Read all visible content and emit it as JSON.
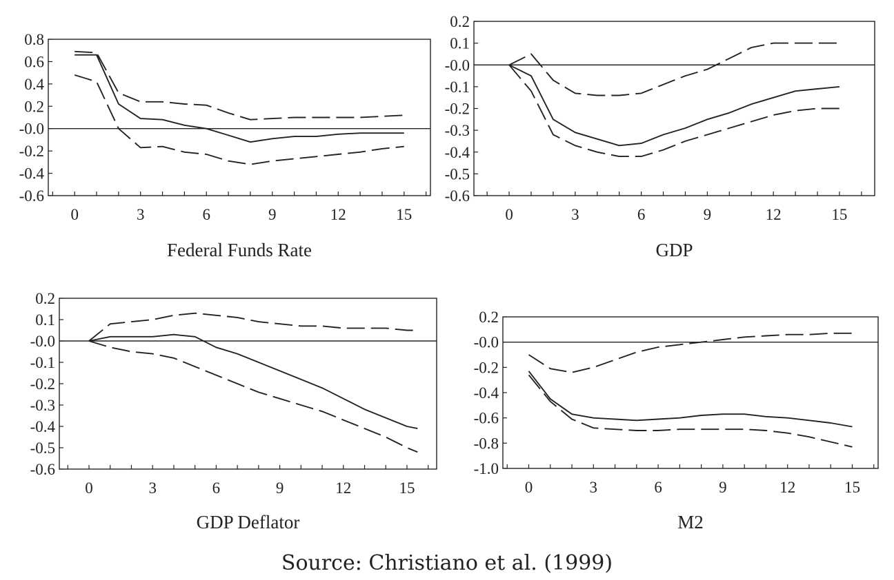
{
  "source": "Source: Christiano et al. (1999)",
  "chart_data": [
    {
      "type": "line",
      "title": "Federal Funds Rate",
      "xlim": [
        -1.2,
        16.2
      ],
      "ylim": [
        -0.6,
        0.8
      ],
      "xticks": [
        0,
        3,
        6,
        9,
        12,
        15
      ],
      "xtick_labels": [
        "0",
        "3",
        "6",
        "9",
        "12",
        "15"
      ],
      "yticks": [
        0.8,
        0.6,
        0.4,
        0.2,
        0.0,
        -0.2,
        -0.4,
        -0.6
      ],
      "ytick_labels": [
        "0.8",
        "0.6",
        "0.4",
        "0.2",
        "-0.0",
        "-0.2",
        "-0.4",
        "-0.6"
      ],
      "zero_line": true,
      "series": [
        {
          "style": "solid",
          "x": [
            0,
            1,
            2,
            3,
            4,
            5,
            6,
            7,
            8,
            9,
            10,
            11,
            12,
            13,
            14,
            15
          ],
          "values": [
            0.66,
            0.66,
            0.22,
            0.09,
            0.08,
            0.03,
            0.0,
            -0.06,
            -0.12,
            -0.09,
            -0.07,
            -0.07,
            -0.05,
            -0.04,
            -0.04,
            -0.04
          ]
        },
        {
          "style": "dashed",
          "x": [
            0,
            1,
            2,
            3,
            4,
            5,
            6,
            7,
            8,
            9,
            10,
            11,
            12,
            13,
            14,
            15
          ],
          "values": [
            0.69,
            0.68,
            0.32,
            0.24,
            0.24,
            0.22,
            0.21,
            0.14,
            0.08,
            0.09,
            0.1,
            0.1,
            0.1,
            0.1,
            0.11,
            0.12
          ]
        },
        {
          "style": "dashed",
          "x": [
            0,
            1,
            2,
            3,
            4,
            5,
            6,
            7,
            8,
            9,
            10,
            11,
            12,
            13,
            14,
            15
          ],
          "values": [
            0.48,
            0.42,
            0.0,
            -0.17,
            -0.16,
            -0.21,
            -0.23,
            -0.29,
            -0.32,
            -0.29,
            -0.27,
            -0.25,
            -0.23,
            -0.21,
            -0.18,
            -0.16
          ]
        }
      ]
    },
    {
      "type": "line",
      "title": "GDP",
      "xlim": [
        -1.6,
        16.6
      ],
      "ylim": [
        -0.6,
        0.2
      ],
      "xticks": [
        0,
        3,
        6,
        9,
        12,
        15
      ],
      "xtick_labels": [
        "0",
        "3",
        "6",
        "9",
        "12",
        "15"
      ],
      "yticks": [
        0.2,
        0.1,
        0.0,
        -0.1,
        -0.2,
        -0.3,
        -0.4,
        -0.5,
        -0.6
      ],
      "ytick_labels": [
        "0.2",
        "0.1",
        "-0.0",
        "-0.1",
        "-0.2",
        "-0.3",
        "-0.4",
        "-0.5",
        "-0.6"
      ],
      "zero_line": true,
      "series": [
        {
          "style": "solid",
          "x": [
            0,
            1,
            2,
            3,
            4,
            5,
            6,
            7,
            8,
            9,
            10,
            11,
            12,
            13,
            14,
            15
          ],
          "values": [
            0.0,
            -0.05,
            -0.25,
            -0.31,
            -0.34,
            -0.37,
            -0.36,
            -0.32,
            -0.29,
            -0.25,
            -0.22,
            -0.18,
            -0.15,
            -0.12,
            -0.11,
            -0.1
          ]
        },
        {
          "style": "dashed",
          "x": [
            0,
            1,
            2,
            3,
            4,
            5,
            6,
            7,
            8,
            9,
            10,
            11,
            12,
            13,
            14,
            15
          ],
          "values": [
            0.0,
            0.05,
            -0.07,
            -0.13,
            -0.14,
            -0.14,
            -0.13,
            -0.09,
            -0.05,
            -0.02,
            0.03,
            0.08,
            0.1,
            0.1,
            0.1,
            0.1
          ]
        },
        {
          "style": "dashed",
          "x": [
            0,
            1,
            2,
            3,
            4,
            5,
            6,
            7,
            8,
            9,
            10,
            11,
            12,
            13,
            14,
            15
          ],
          "values": [
            0.0,
            -0.12,
            -0.32,
            -0.37,
            -0.4,
            -0.42,
            -0.42,
            -0.39,
            -0.35,
            -0.32,
            -0.29,
            -0.26,
            -0.23,
            -0.21,
            -0.2,
            -0.2
          ]
        }
      ]
    },
    {
      "type": "line",
      "title": "GDP Deflator",
      "xlim": [
        -1.4,
        16.4
      ],
      "ylim": [
        -0.6,
        0.2
      ],
      "xticks": [
        0,
        3,
        6,
        9,
        12,
        15
      ],
      "xtick_labels": [
        "0",
        "3",
        "6",
        "9",
        "12",
        "15"
      ],
      "yticks": [
        0.2,
        0.1,
        0.0,
        -0.1,
        -0.2,
        -0.3,
        -0.4,
        -0.5,
        -0.6
      ],
      "ytick_labels": [
        "0.2",
        "0.1",
        "-0.0",
        "-0.1",
        "-0.2",
        "-0.3",
        "-0.4",
        "-0.5",
        "-0.6"
      ],
      "zero_line": true,
      "series": [
        {
          "style": "solid",
          "x": [
            0,
            1,
            2,
            3,
            4,
            5,
            6,
            7,
            8,
            9,
            10,
            11,
            12,
            13,
            14,
            15,
            15.5
          ],
          "values": [
            0.0,
            0.02,
            0.02,
            0.02,
            0.03,
            0.02,
            -0.03,
            -0.06,
            -0.1,
            -0.14,
            -0.18,
            -0.22,
            -0.27,
            -0.32,
            -0.36,
            -0.4,
            -0.41
          ]
        },
        {
          "style": "dashed",
          "x": [
            0,
            1,
            2,
            3,
            4,
            5,
            6,
            7,
            8,
            9,
            10,
            11,
            12,
            13,
            14,
            15,
            15.5
          ],
          "values": [
            0.0,
            0.08,
            0.09,
            0.1,
            0.12,
            0.13,
            0.12,
            0.11,
            0.09,
            0.08,
            0.07,
            0.07,
            0.06,
            0.06,
            0.06,
            0.05,
            0.05
          ]
        },
        {
          "style": "dashed",
          "x": [
            0,
            1,
            2,
            3,
            4,
            5,
            6,
            7,
            8,
            9,
            10,
            11,
            12,
            13,
            14,
            15,
            15.5
          ],
          "values": [
            0.0,
            -0.03,
            -0.05,
            -0.06,
            -0.08,
            -0.12,
            -0.16,
            -0.2,
            -0.24,
            -0.27,
            -0.3,
            -0.33,
            -0.37,
            -0.41,
            -0.45,
            -0.5,
            -0.52
          ]
        }
      ]
    },
    {
      "type": "line",
      "title": "M2",
      "xlim": [
        -1.2,
        16.2
      ],
      "ylim": [
        -1.0,
        0.2
      ],
      "xticks": [
        0,
        3,
        6,
        9,
        12,
        15
      ],
      "xtick_labels": [
        "0",
        "3",
        "6",
        "9",
        "12",
        "15"
      ],
      "yticks": [
        0.2,
        0.0,
        -0.2,
        -0.4,
        -0.6,
        -0.8,
        -1.0
      ],
      "ytick_labels": [
        "0.2",
        "-0.0",
        "-0.2",
        "-0.4",
        "-0.6",
        "-0.8",
        "-1.0"
      ],
      "zero_line": true,
      "series": [
        {
          "style": "solid",
          "x": [
            0,
            1,
            2,
            3,
            4,
            5,
            6,
            7,
            8,
            9,
            10,
            11,
            12,
            13,
            14,
            15
          ],
          "values": [
            -0.23,
            -0.45,
            -0.57,
            -0.6,
            -0.61,
            -0.62,
            -0.61,
            -0.6,
            -0.58,
            -0.57,
            -0.57,
            -0.59,
            -0.6,
            -0.62,
            -0.64,
            -0.67
          ]
        },
        {
          "style": "dashed",
          "x": [
            0,
            1,
            2,
            3,
            4,
            5,
            6,
            7,
            8,
            9,
            10,
            11,
            12,
            13,
            14,
            15
          ],
          "values": [
            -0.1,
            -0.21,
            -0.24,
            -0.2,
            -0.14,
            -0.08,
            -0.04,
            -0.02,
            0.0,
            0.02,
            0.04,
            0.05,
            0.06,
            0.06,
            0.07,
            0.07
          ]
        },
        {
          "style": "dashed",
          "x": [
            0,
            1,
            2,
            3,
            4,
            5,
            6,
            7,
            8,
            9,
            10,
            11,
            12,
            13,
            14,
            15
          ],
          "values": [
            -0.26,
            -0.47,
            -0.61,
            -0.68,
            -0.69,
            -0.7,
            -0.7,
            -0.69,
            -0.69,
            -0.69,
            -0.69,
            -0.7,
            -0.72,
            -0.75,
            -0.79,
            -0.83
          ]
        }
      ]
    }
  ]
}
